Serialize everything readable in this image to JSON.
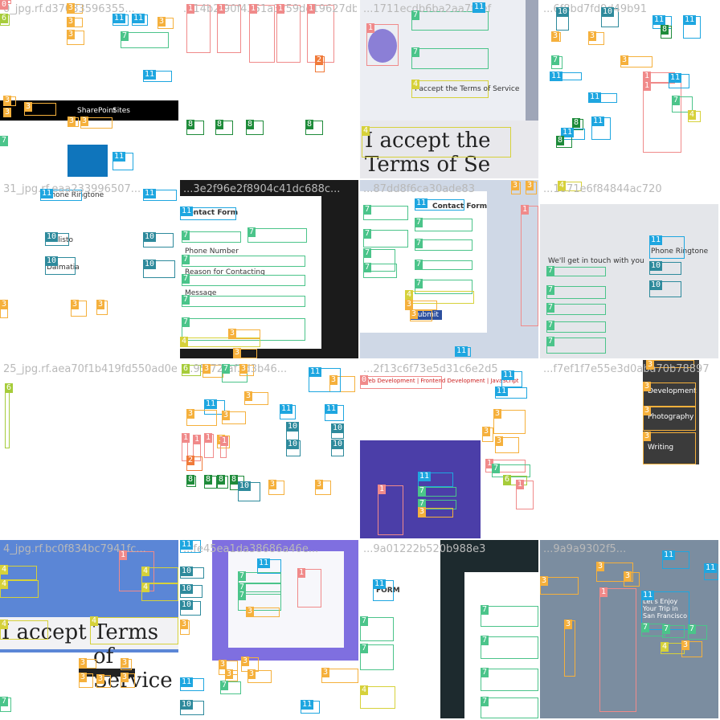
{
  "tiles": [
    {
      "id": "t0",
      "filename": "0_jpg.rf.d37083596355...",
      "labels": {
        "sharepoint": "SharePoint",
        "sites": "Sites"
      }
    },
    {
      "id": "t1",
      "filename": "...14b2f90f4351a3c59de19627db382d2e",
      "labels": {}
    },
    {
      "id": "t2",
      "filename": "...1711ecdb6ba2aa7faef",
      "labels": {
        "terms": "I accept the Terms of Se",
        "terms_small": "I accept the Terms of Service"
      }
    },
    {
      "id": "t3",
      "filename": "...6f8bd7fd9d49b91",
      "labels": {}
    },
    {
      "id": "t4",
      "filename": "31_jpg.rf.eaa233996507...",
      "labels": {
        "ringtone": "Phone Ringtone",
        "callisto": "Callisto",
        "dalmatia": "Dalmatia"
      }
    },
    {
      "id": "t5",
      "filename": "...3e2f96e2f8904c41dc688c...",
      "labels": {
        "form_title": "Contact Form",
        "phone": "Phone Number",
        "reason": "Reason for Contacting",
        "message": "Message"
      }
    },
    {
      "id": "t6",
      "filename": "...87dd8f6ca30ade83",
      "labels": {
        "form_title": "Contact Form",
        "submit": "Submit"
      }
    },
    {
      "id": "t7",
      "filename": "...1871e6f84844ac720",
      "labels": {
        "ringtone": "Phone Ringtone",
        "get_in_touch": "We'll get in touch with you"
      }
    },
    {
      "id": "t8",
      "filename": "25_jpg.rf.aea70f1b419fd550ad0e288f...",
      "labels": {}
    },
    {
      "id": "t9",
      "filename": "...95f72faf3d3b46...",
      "labels": {}
    },
    {
      "id": "t10",
      "filename": "...2f13c6f73e5d31c6e2d5",
      "labels": {
        "nav": "Web Development | Frontend Development | JavaScript"
      }
    },
    {
      "id": "t11",
      "filename": "...f7ef1f7e55e3d0aba70b78897",
      "labels": {
        "development": "Development",
        "photography": "Photography",
        "writing": "Writing"
      }
    },
    {
      "id": "t12",
      "filename": "4_jpg.rf.bc0f834bc7941fc...",
      "labels": {
        "accept": "I accept",
        "terms": "Terms of Service"
      }
    },
    {
      "id": "t13",
      "filename": "...fe45ea1da38686a46e...",
      "labels": {}
    },
    {
      "id": "t14",
      "filename": "...9a01222b520b988e3",
      "labels": {
        "form": "FORM"
      }
    },
    {
      "id": "t15",
      "filename": "...9a9a9302f5...",
      "labels": {
        "promo": "Let's Enjoy Your Trip in San Francisco"
      }
    }
  ],
  "tag_labels": {
    "a": "0",
    "b": "1",
    "c": "2",
    "d": "3",
    "e": "4",
    "f": "6",
    "g": "7",
    "h": "8",
    "i": "10",
    "j": "11"
  }
}
